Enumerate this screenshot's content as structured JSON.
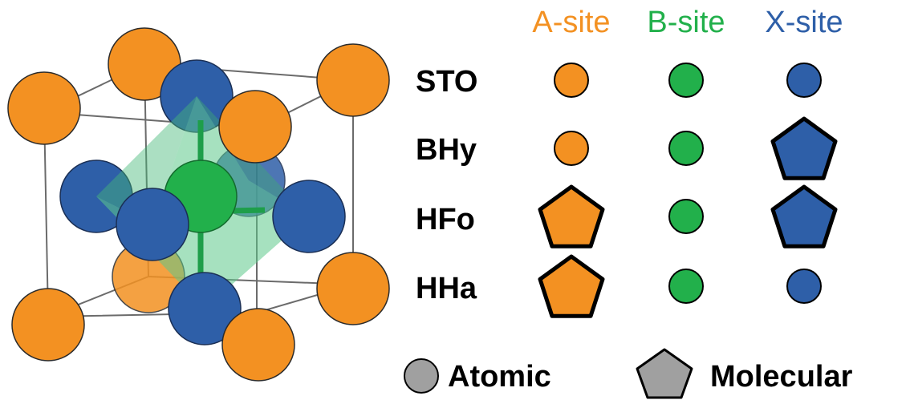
{
  "colors": {
    "a_site": "#F39122",
    "b_site": "#22B04B",
    "x_site": "#2E5FA8",
    "legend_gray": "#A0A0A0",
    "octahedron": "#5CC98A",
    "edge": "#6b6b6b"
  },
  "columns": [
    {
      "key": "a",
      "label": "A-site",
      "color": "#F39122"
    },
    {
      "key": "b",
      "label": "B-site",
      "color": "#22B04B"
    },
    {
      "key": "x",
      "label": "X-site",
      "color": "#2E5FA8"
    }
  ],
  "rows": [
    {
      "label": "STO",
      "a": "atomic",
      "b": "atomic",
      "x": "atomic"
    },
    {
      "label": "BHy",
      "a": "atomic",
      "b": "atomic",
      "x": "molecular"
    },
    {
      "label": "HFo",
      "a": "molecular",
      "b": "atomic",
      "x": "molecular"
    },
    {
      "label": "HHa",
      "a": "molecular",
      "b": "atomic",
      "x": "atomic"
    }
  ],
  "legend": {
    "atomic_label": "Atomic",
    "molecular_label": "Molecular"
  }
}
